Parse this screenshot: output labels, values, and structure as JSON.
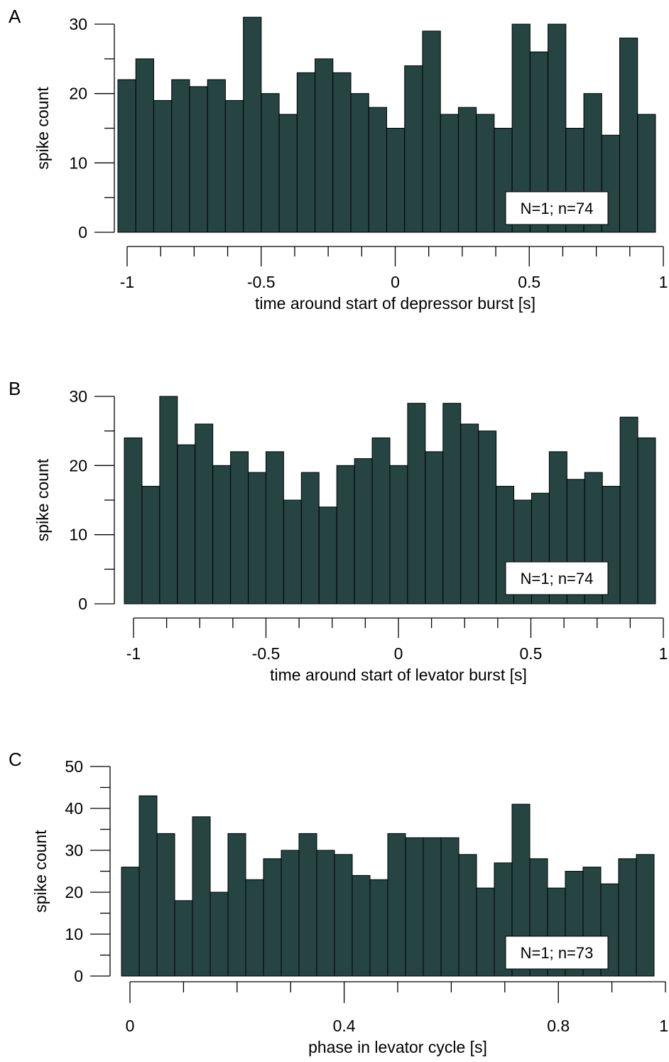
{
  "colors": {
    "bar_fill": "#254442",
    "bar_stroke": "#000000",
    "axis": "#000000"
  },
  "chart_data": [
    {
      "type": "bar",
      "panel": "A",
      "xlabel": "time around start of depressor burst  [s]",
      "ylabel": "spike count",
      "annotation": "N=1; n=74",
      "xlim": [
        -1,
        1
      ],
      "ylim": [
        0,
        30
      ],
      "x_ticks": [
        "-1",
        "-0.5",
        "0",
        "0.5",
        "1"
      ],
      "y_ticks": [
        "0",
        "10",
        "20",
        "30"
      ],
      "bins": 30,
      "values": [
        22,
        25,
        19,
        22,
        21,
        22,
        19,
        31,
        20,
        17,
        23,
        25,
        23,
        20,
        18,
        15,
        24,
        29,
        17,
        18,
        17,
        15,
        30,
        26,
        30,
        15,
        20,
        14,
        28,
        17
      ]
    },
    {
      "type": "bar",
      "panel": "B",
      "xlabel": "time around start of levator burst  [s]",
      "ylabel": "spike count",
      "annotation": "N=1; n=74",
      "xlim": [
        -1,
        1
      ],
      "ylim": [
        0,
        30
      ],
      "x_ticks": [
        "-1",
        "-0.5",
        "0",
        "0.5",
        "1"
      ],
      "y_ticks": [
        "0",
        "10",
        "20",
        "30"
      ],
      "bins": 30,
      "values": [
        24,
        17,
        30,
        23,
        26,
        20,
        22,
        19,
        22,
        15,
        19,
        14,
        20,
        21,
        24,
        20,
        29,
        22,
        29,
        26,
        25,
        17,
        15,
        16,
        22,
        18,
        19,
        17,
        27,
        24
      ]
    },
    {
      "type": "bar",
      "panel": "C",
      "xlabel": "phase in levator cycle [s]",
      "ylabel": "spike count",
      "annotation": "N=1; n=73",
      "xlim": [
        0,
        1
      ],
      "ylim": [
        0,
        50
      ],
      "x_ticks": [
        "0",
        "0.4",
        "0.8",
        "1"
      ],
      "y_ticks": [
        "0",
        "10",
        "20",
        "30",
        "40",
        "50"
      ],
      "bins": 30,
      "values": [
        26,
        43,
        34,
        18,
        38,
        20,
        34,
        23,
        28,
        30,
        34,
        30,
        29,
        24,
        23,
        34,
        33,
        33,
        33,
        29,
        21,
        27,
        41,
        28,
        21,
        25,
        26,
        22,
        28,
        29
      ]
    }
  ]
}
